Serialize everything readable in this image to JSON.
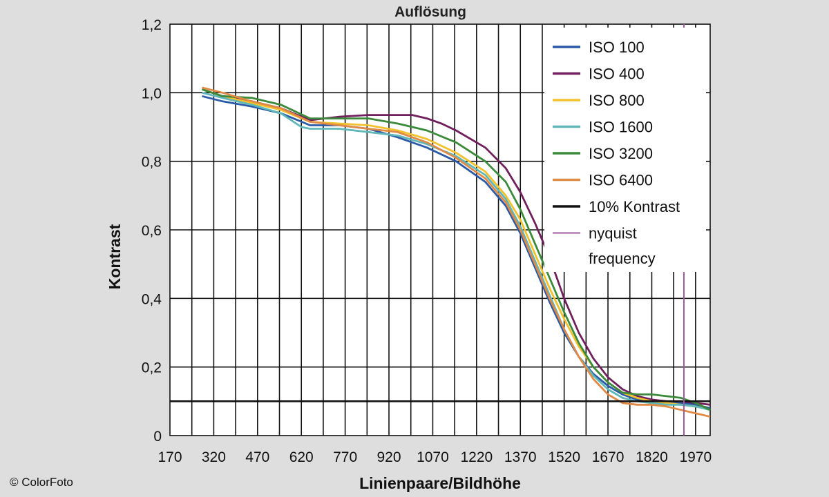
{
  "watermark": "© ColorFoto",
  "chart_data": {
    "type": "line",
    "title": "Auflösung",
    "xlabel": "Linienpaare/Bildhöhe",
    "ylabel": "Kontrast",
    "xlim": [
      170,
      2020
    ],
    "ylim": [
      0,
      1.2
    ],
    "x_ticks": [
      170,
      320,
      470,
      620,
      770,
      920,
      1070,
      1220,
      1370,
      1520,
      1670,
      1820,
      1970
    ],
    "x_tick_labels": [
      "170",
      "320",
      "470",
      "620",
      "770",
      "920",
      "1070",
      "1220",
      "1370",
      "1520",
      "1670",
      "1820",
      "1970"
    ],
    "y_ticks": [
      0,
      0.2,
      0.4,
      0.6,
      0.8,
      1.0,
      1.2
    ],
    "y_tick_labels": [
      "0",
      "0,2",
      "0,4",
      "0,6",
      "0,8",
      "1,0",
      "1,2"
    ],
    "grid": true,
    "legend_position": "top-right",
    "series": [
      {
        "name": "ISO 100",
        "color": "#2b5aa6",
        "x": [
          280,
          350,
          450,
          550,
          650,
          750,
          850,
          950,
          1050,
          1150,
          1250,
          1320,
          1370,
          1420,
          1470,
          1520,
          1570,
          1620,
          1670,
          1720,
          1770,
          1820,
          1870,
          1920,
          1970,
          2020
        ],
        "y": [
          0.99,
          0.975,
          0.96,
          0.94,
          0.905,
          0.905,
          0.895,
          0.87,
          0.84,
          0.8,
          0.74,
          0.67,
          0.59,
          0.49,
          0.39,
          0.3,
          0.23,
          0.18,
          0.145,
          0.12,
          0.105,
          0.1,
          0.1,
          0.095,
          0.09,
          0.08
        ]
      },
      {
        "name": "ISO 400",
        "color": "#6e1f5c",
        "x": [
          280,
          350,
          450,
          550,
          650,
          750,
          850,
          950,
          1000,
          1050,
          1100,
          1150,
          1250,
          1320,
          1370,
          1420,
          1470,
          1520,
          1570,
          1620,
          1670,
          1720,
          1770,
          1820,
          1870,
          1920,
          1970,
          2020
        ],
        "y": [
          1.01,
          0.99,
          0.975,
          0.955,
          0.92,
          0.93,
          0.935,
          0.935,
          0.935,
          0.925,
          0.91,
          0.89,
          0.84,
          0.78,
          0.71,
          0.62,
          0.52,
          0.4,
          0.3,
          0.225,
          0.17,
          0.135,
          0.115,
          0.105,
          0.1,
          0.1,
          0.095,
          0.09
        ]
      },
      {
        "name": "ISO 800",
        "color": "#f2c12e",
        "x": [
          280,
          350,
          450,
          550,
          650,
          750,
          850,
          950,
          1050,
          1150,
          1250,
          1320,
          1370,
          1420,
          1470,
          1520,
          1570,
          1620,
          1670,
          1720,
          1770,
          1820,
          1870,
          1920,
          1970,
          2020
        ],
        "y": [
          1.01,
          0.99,
          0.97,
          0.95,
          0.915,
          0.91,
          0.905,
          0.89,
          0.865,
          0.825,
          0.77,
          0.7,
          0.63,
          0.53,
          0.43,
          0.34,
          0.26,
          0.2,
          0.155,
          0.125,
          0.11,
          0.1,
          0.095,
          0.09,
          0.085,
          0.075
        ]
      },
      {
        "name": "ISO 1600",
        "color": "#5fb7b8",
        "x": [
          280,
          350,
          450,
          550,
          620,
          650,
          750,
          850,
          950,
          1050,
          1150,
          1250,
          1320,
          1370,
          1420,
          1470,
          1520,
          1570,
          1620,
          1670,
          1720,
          1770,
          1820,
          1870,
          1920,
          1970,
          2020
        ],
        "y": [
          1.0,
          0.985,
          0.965,
          0.94,
          0.9,
          0.895,
          0.895,
          0.885,
          0.875,
          0.85,
          0.815,
          0.76,
          0.69,
          0.61,
          0.51,
          0.41,
          0.31,
          0.23,
          0.175,
          0.135,
          0.11,
          0.1,
          0.095,
          0.09,
          0.09,
          0.085,
          0.075
        ]
      },
      {
        "name": "ISO 3200",
        "color": "#3a8a3a",
        "x": [
          280,
          350,
          450,
          550,
          650,
          750,
          850,
          950,
          1050,
          1150,
          1250,
          1320,
          1370,
          1420,
          1470,
          1520,
          1570,
          1620,
          1670,
          1720,
          1770,
          1820,
          1870,
          1920,
          1970,
          2020
        ],
        "y": [
          1.01,
          0.99,
          0.985,
          0.965,
          0.925,
          0.925,
          0.925,
          0.91,
          0.89,
          0.855,
          0.8,
          0.74,
          0.66,
          0.56,
          0.46,
          0.36,
          0.27,
          0.2,
          0.155,
          0.125,
          0.12,
          0.12,
          0.115,
          0.11,
          0.095,
          0.075
        ]
      },
      {
        "name": "ISO 6400",
        "color": "#e08a45",
        "x": [
          280,
          350,
          450,
          550,
          650,
          750,
          850,
          950,
          1050,
          1150,
          1250,
          1320,
          1370,
          1420,
          1470,
          1520,
          1570,
          1620,
          1670,
          1720,
          1770,
          1820,
          1870,
          1920,
          1970,
          2020
        ],
        "y": [
          1.015,
          1.0,
          0.975,
          0.955,
          0.915,
          0.905,
          0.895,
          0.885,
          0.855,
          0.81,
          0.75,
          0.68,
          0.6,
          0.5,
          0.4,
          0.31,
          0.23,
          0.165,
          0.12,
          0.095,
          0.09,
          0.09,
          0.085,
          0.075,
          0.065,
          0.055
        ]
      },
      {
        "name": "10% Kontrast",
        "color": "#111111",
        "x": [
          170,
          2020
        ],
        "y": [
          0.1,
          0.1
        ]
      }
    ],
    "nyquist_line": {
      "name": "nyquist frequency",
      "color": "#9b5a9b",
      "x": 1930
    },
    "legend": [
      {
        "label": "ISO 100",
        "color": "#2b5aa6"
      },
      {
        "label": "ISO 400",
        "color": "#6e1f5c"
      },
      {
        "label": "ISO 800",
        "color": "#f2c12e"
      },
      {
        "label": "ISO 1600",
        "color": "#5fb7b8"
      },
      {
        "label": "ISO 3200",
        "color": "#3a8a3a"
      },
      {
        "label": "ISO 6400",
        "color": "#e08a45"
      },
      {
        "label": "10% Kontrast",
        "color": "#111111"
      },
      {
        "label": "nyquist",
        "label2": "frequency",
        "color": "#9b5a9b"
      }
    ]
  }
}
